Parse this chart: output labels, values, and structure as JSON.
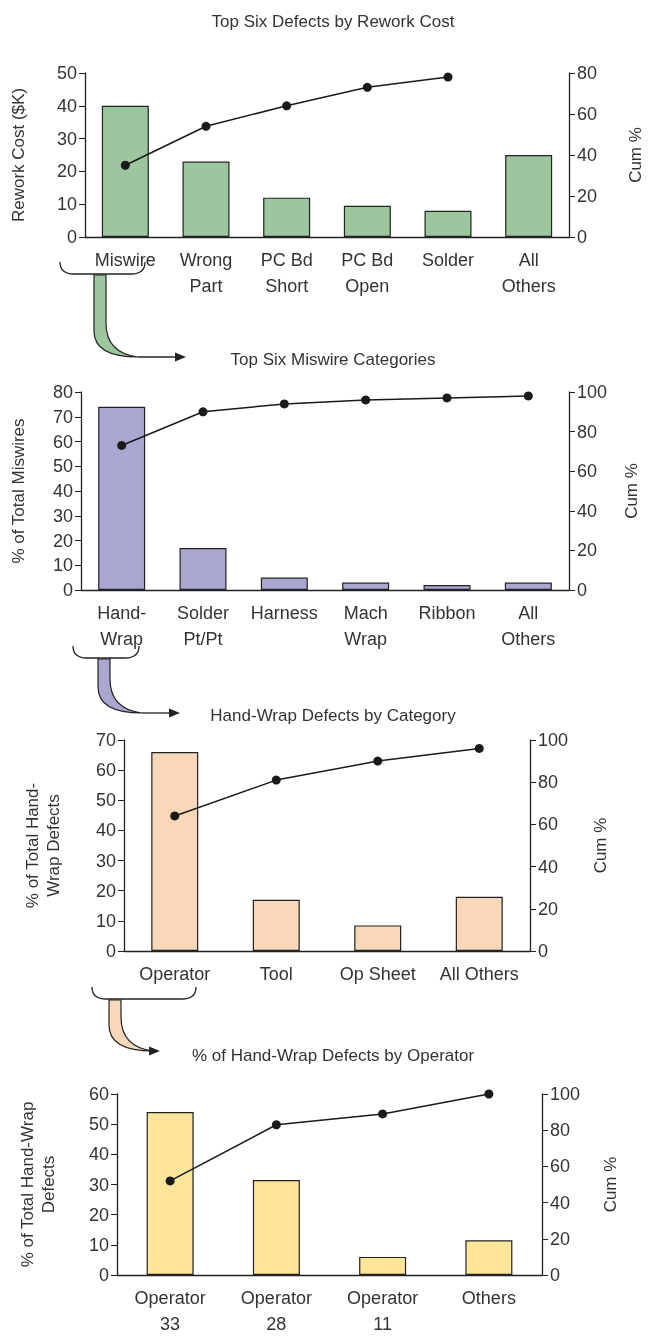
{
  "chart_data": [
    {
      "type": "bar",
      "title": "Top Six Defects by Rework Cost",
      "ylabel": "Rework Cost ($K)",
      "y2label": "Cum %",
      "categories": [
        "Miswire",
        "Wrong\nPart",
        "PC Bd\nShort",
        "PC Bd\nOpen",
        "Solder",
        "All\nOthers"
      ],
      "series": [
        {
          "color": "#9cc69e",
          "values": [
            40,
            23,
            12,
            9.5,
            8,
            25
          ]
        },
        {
          "type": "line",
          "axis": "y2",
          "color": "#1a1a1a",
          "values": [
            35,
            54,
            64,
            73,
            78,
            null
          ]
        }
      ],
      "ylim": [
        0,
        50
      ],
      "yticks": [
        0,
        10,
        20,
        30,
        40,
        50
      ],
      "y2lim": [
        0,
        80
      ],
      "y2ticks": [
        0,
        20,
        40,
        60,
        80
      ],
      "marker": "circle",
      "line_style": "solid"
    },
    {
      "type": "bar",
      "title": "Top Six Miswire Categories",
      "ylabel": "% of Total Miswires",
      "y2label": "Cum %",
      "categories": [
        "Hand-\nWrap",
        "Solder\nPt/Pt",
        "Harness",
        "Mach\nWrap",
        "Ribbon",
        "All\nOthers"
      ],
      "series": [
        {
          "color": "#a9a6d0",
          "values": [
            74,
            17,
            5,
            3,
            2,
            3
          ]
        },
        {
          "type": "line",
          "axis": "y2",
          "color": "#1a1a1a",
          "values": [
            73,
            90,
            94,
            96,
            97,
            98
          ]
        }
      ],
      "ylim": [
        0,
        80
      ],
      "yticks": [
        0,
        10,
        20,
        30,
        40,
        50,
        60,
        70,
        80
      ],
      "y2lim": [
        0,
        100
      ],
      "y2ticks": [
        0,
        20,
        40,
        60,
        80,
        100
      ],
      "marker": "circle",
      "line_style": "solid"
    },
    {
      "type": "bar",
      "title": "Hand-Wrap Defects by Category",
      "ylabel": "% of Total Hand-\nWrap Defects",
      "y2label": "Cum %",
      "categories": [
        "Operator",
        "Tool",
        "Op Sheet",
        "All Others"
      ],
      "series": [
        {
          "color": "#f8d8b8",
          "values": [
            66,
            17,
            8.5,
            18
          ]
        },
        {
          "type": "line",
          "axis": "y2",
          "color": "#1a1a1a",
          "values": [
            64,
            81,
            90,
            96
          ]
        }
      ],
      "ylim": [
        0,
        70
      ],
      "yticks": [
        0,
        10,
        20,
        30,
        40,
        50,
        60,
        70
      ],
      "y2lim": [
        0,
        100
      ],
      "y2ticks": [
        0,
        20,
        40,
        60,
        80,
        100
      ],
      "marker": "circle",
      "line_style": "solid"
    },
    {
      "type": "bar",
      "title": "% of Hand-Wrap Defects by Operator",
      "ylabel": "% of Total Hand-Wrap\nDefects",
      "y2label": "Cum %",
      "categories": [
        "Operator\n33",
        "Operator\n28",
        "Operator\n11",
        "Others"
      ],
      "series": [
        {
          "color": "#fee59a",
          "values": [
            54,
            31.5,
            6,
            11.5
          ]
        },
        {
          "type": "line",
          "axis": "y2",
          "color": "#1a1a1a",
          "values": [
            52,
            83,
            89,
            100
          ]
        }
      ],
      "ylim": [
        0,
        60
      ],
      "yticks": [
        0,
        10,
        20,
        30,
        40,
        50,
        60
      ],
      "y2lim": [
        0,
        100
      ],
      "y2ticks": [
        0,
        20,
        40,
        60,
        80,
        100
      ],
      "marker": "circle",
      "line_style": "solid"
    }
  ]
}
